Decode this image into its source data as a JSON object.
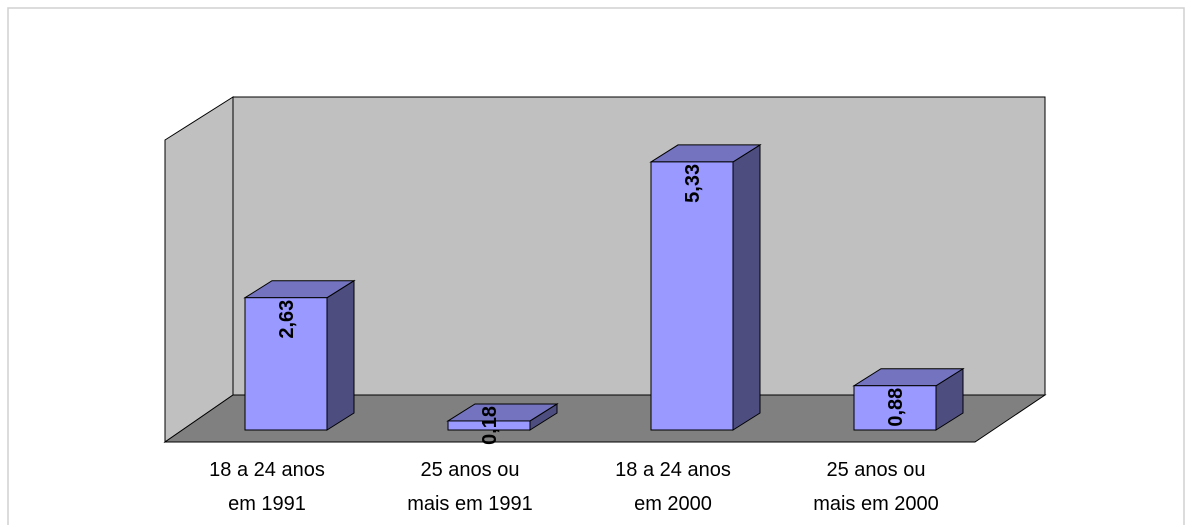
{
  "chart_data": {
    "type": "bar",
    "categories": [
      "18 a 24 anos em 1991",
      "25 anos ou mais em 1991",
      "18 a 24 anos em 2000",
      "25 anos ou mais em 2000"
    ],
    "values": [
      2.63,
      0.18,
      5.33,
      0.88
    ],
    "value_labels": [
      "2,63",
      "0,18",
      "5,33",
      "0,88"
    ],
    "color": "#9999ff"
  }
}
